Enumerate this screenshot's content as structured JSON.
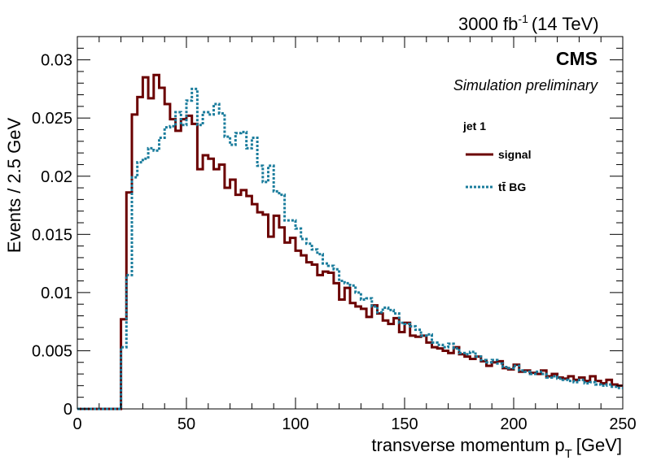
{
  "chart_data": {
    "type": "histogram",
    "header": "3000 fb",
    "header_sup": "-1",
    "header_energy": "(14 TeV)",
    "experiment": "CMS",
    "subtitle": "Simulation preliminary",
    "legend_title": "jet 1",
    "xlabel": "transverse momentum p",
    "xlabel_sub": "T",
    "xlabel_unit": "[GeV]",
    "ylabel": "Events / 2.5 GeV",
    "xlim": [
      0,
      250
    ],
    "ylim": [
      0,
      0.032
    ],
    "bin_width": 2.5,
    "x_ticks": [
      0,
      50,
      100,
      150,
      200,
      250
    ],
    "y_ticks": [
      0,
      0.005,
      0.01,
      0.015,
      0.02,
      0.025,
      0.03
    ],
    "y_tick_labels": [
      "0",
      "0.005",
      "0.01",
      "0.015",
      "0.02",
      "0.025",
      "0.03"
    ],
    "legend_position": "top-right",
    "series": [
      {
        "name": "signal",
        "color": "#6b0000",
        "style": "solid",
        "values": [
          0,
          0,
          0,
          0,
          0,
          0,
          0,
          0,
          0.0077,
          0.0186,
          0.0253,
          0.0268,
          0.0285,
          0.0267,
          0.0287,
          0.0276,
          0.0262,
          0.0249,
          0.0239,
          0.0249,
          0.0252,
          0.0245,
          0.0206,
          0.0218,
          0.0215,
          0.0206,
          0.021,
          0.019,
          0.0197,
          0.0184,
          0.0188,
          0.0183,
          0.0176,
          0.0169,
          0.0167,
          0.0148,
          0.0166,
          0.0156,
          0.0143,
          0.0147,
          0.0136,
          0.0132,
          0.0126,
          0.0124,
          0.0115,
          0.0118,
          0.0117,
          0.0108,
          0.0094,
          0.0104,
          0.0091,
          0.0088,
          0.0086,
          0.0079,
          0.0089,
          0.0082,
          0.0076,
          0.0073,
          0.0078,
          0.0066,
          0.0074,
          0.0063,
          0.0062,
          0.0063,
          0.0057,
          0.0053,
          0.0052,
          0.005,
          0.0048,
          0.0053,
          0.0047,
          0.0045,
          0.0043,
          0.0045,
          0.0041,
          0.0037,
          0.004,
          0.0041,
          0.0035,
          0.0034,
          0.0038,
          0.0032,
          0.0033,
          0.0031,
          0.003,
          0.0033,
          0.0028,
          0.003,
          0.0027,
          0.0026,
          0.0028,
          0.0025,
          0.0027,
          0.0024,
          0.0028,
          0.0024,
          0.0022,
          0.0025,
          0.0021,
          0.002
        ]
      },
      {
        "name": "tt̄ BG",
        "color": "#1a7c9c",
        "style": "dotted",
        "values": [
          0,
          0,
          0,
          0,
          0,
          0,
          0,
          0,
          0.0053,
          0.0115,
          0.0199,
          0.0212,
          0.0215,
          0.0224,
          0.0222,
          0.0233,
          0.0242,
          0.0243,
          0.0255,
          0.0244,
          0.0265,
          0.0275,
          0.0244,
          0.0255,
          0.0253,
          0.0262,
          0.0254,
          0.0234,
          0.0227,
          0.0237,
          0.0238,
          0.0224,
          0.0233,
          0.0209,
          0.0195,
          0.0209,
          0.0187,
          0.0184,
          0.0162,
          0.0162,
          0.0155,
          0.0146,
          0.0142,
          0.0137,
          0.0133,
          0.0125,
          0.0123,
          0.012,
          0.011,
          0.0108,
          0.0106,
          0.01,
          0.0094,
          0.0095,
          0.0088,
          0.0083,
          0.0087,
          0.0085,
          0.0082,
          0.0074,
          0.0073,
          0.0071,
          0.0068,
          0.0063,
          0.0064,
          0.0057,
          0.0055,
          0.0053,
          0.0056,
          0.0052,
          0.0048,
          0.0047,
          0.0049,
          0.0045,
          0.0042,
          0.004,
          0.0042,
          0.0039,
          0.0036,
          0.0035,
          0.0037,
          0.0033,
          0.0032,
          0.003,
          0.0032,
          0.003,
          0.0027,
          0.0028,
          0.0026,
          0.0025,
          0.0024,
          0.0023,
          0.0025,
          0.0022,
          0.0023,
          0.0021,
          0.002,
          0.0021,
          0.0019,
          0.0018
        ]
      }
    ]
  }
}
